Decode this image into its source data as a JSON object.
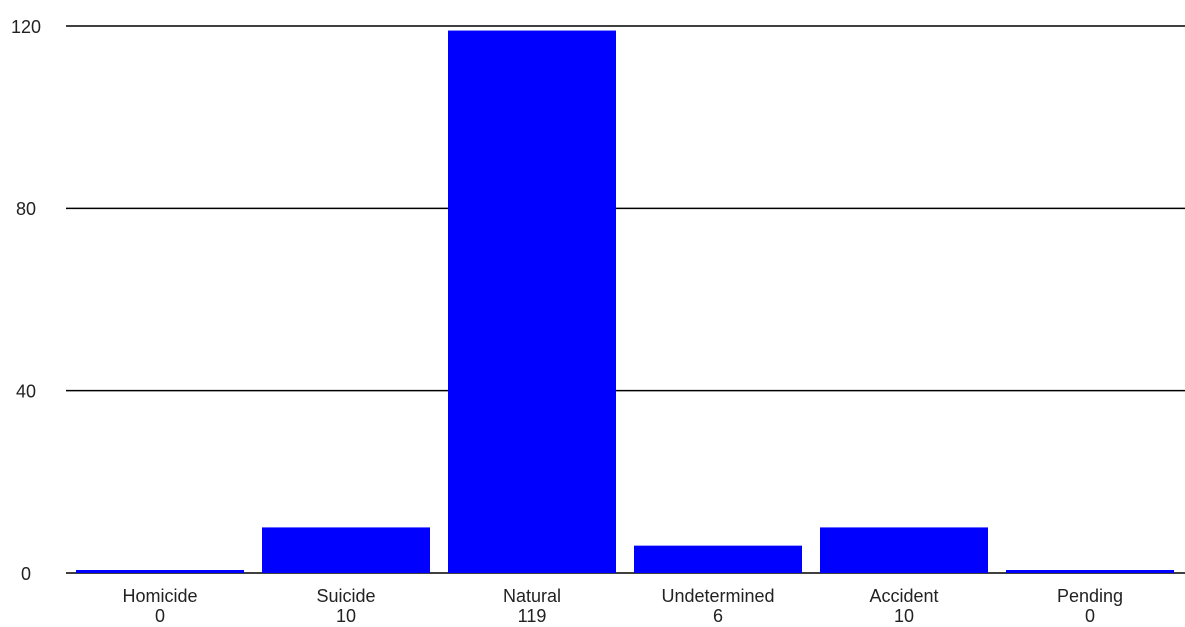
{
  "chart_data": {
    "type": "bar",
    "categories": [
      "Homicide",
      "Suicide",
      "Natural",
      "Undetermined",
      "Accident",
      "Pending"
    ],
    "values": [
      0,
      10,
      119,
      6,
      10,
      0
    ],
    "value_labels": [
      "0",
      "10",
      "119",
      "6",
      "10",
      "0"
    ],
    "title": "",
    "xlabel": "",
    "ylabel": "",
    "ylim": [
      0,
      120
    ],
    "yticks": [
      0,
      40,
      80,
      120
    ],
    "ytick_labels": [
      "0",
      "40",
      "80",
      "120"
    ],
    "grid": true,
    "legend": "none",
    "colors": {
      "bar": "#0000ff",
      "grid": "#000000",
      "text": "#222222"
    }
  }
}
